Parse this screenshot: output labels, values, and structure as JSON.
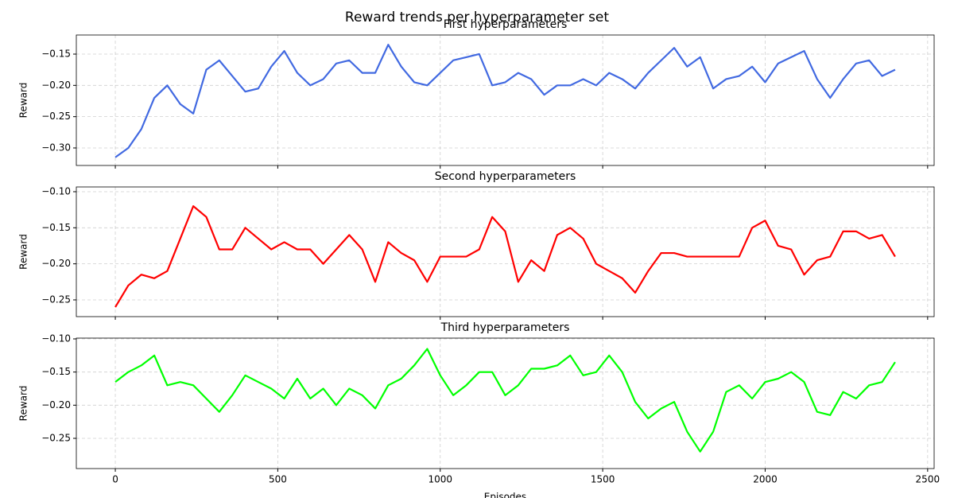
{
  "title": "Reward trends per hyperparameter set",
  "chart_data": [
    {
      "type": "line",
      "title": "First hyperparameters",
      "ylabel": "Reward",
      "grid": true,
      "xtick_labels": false,
      "x": [
        0,
        40,
        80,
        120,
        160,
        200,
        240,
        280,
        320,
        360,
        400,
        440,
        480,
        520,
        560,
        600,
        640,
        680,
        720,
        760,
        800,
        840,
        880,
        920,
        960,
        1000,
        1040,
        1080,
        1120,
        1160,
        1200,
        1240,
        1280,
        1320,
        1360,
        1400,
        1440,
        1480,
        1520,
        1560,
        1600,
        1640,
        1680,
        1720,
        1760,
        1800,
        1840,
        1880,
        1920,
        1960,
        2000,
        2040,
        2080,
        2120,
        2160,
        2200,
        2240,
        2280,
        2320,
        2360,
        2400
      ],
      "xlim": [
        -120,
        2520
      ],
      "xticks": [
        0,
        500,
        1000,
        1500,
        2000,
        2500
      ],
      "ylim": [
        -0.328,
        -0.1195
      ],
      "yticks": [
        {
          "value": -0.3,
          "label": "−0.30"
        },
        {
          "value": -0.25,
          "label": "−0.25"
        },
        {
          "value": -0.2,
          "label": "−0.20"
        },
        {
          "value": -0.15,
          "label": "−0.15"
        }
      ],
      "series": [
        {
          "name": "First",
          "color": "#4169e1",
          "values": [
            -0.315,
            -0.3,
            -0.27,
            -0.22,
            -0.2,
            -0.23,
            -0.245,
            -0.175,
            -0.16,
            -0.185,
            -0.21,
            -0.205,
            -0.17,
            -0.145,
            -0.18,
            -0.2,
            -0.19,
            -0.165,
            -0.16,
            -0.18,
            -0.18,
            -0.135,
            -0.17,
            -0.195,
            -0.2,
            -0.18,
            -0.16,
            -0.155,
            -0.15,
            -0.2,
            -0.195,
            -0.18,
            -0.19,
            -0.215,
            -0.2,
            -0.2,
            -0.19,
            -0.2,
            -0.18,
            -0.19,
            -0.205,
            -0.18,
            -0.16,
            -0.14,
            -0.17,
            -0.155,
            -0.205,
            -0.19,
            -0.185,
            -0.17,
            -0.195,
            -0.165,
            -0.155,
            -0.145,
            -0.19,
            -0.22,
            -0.19,
            -0.165,
            -0.16,
            -0.185,
            -0.175
          ]
        }
      ]
    },
    {
      "type": "line",
      "title": "Second hyperparameters",
      "ylabel": "Reward",
      "grid": true,
      "xtick_labels": false,
      "x": [
        0,
        40,
        80,
        120,
        160,
        200,
        240,
        280,
        320,
        360,
        400,
        440,
        480,
        520,
        560,
        600,
        640,
        680,
        720,
        760,
        800,
        840,
        880,
        920,
        960,
        1000,
        1040,
        1080,
        1120,
        1160,
        1200,
        1240,
        1280,
        1320,
        1360,
        1400,
        1440,
        1480,
        1520,
        1560,
        1600,
        1640,
        1680,
        1720,
        1760,
        1800,
        1840,
        1880,
        1920,
        1960,
        2000,
        2040,
        2080,
        2120,
        2160,
        2200,
        2240,
        2280,
        2320,
        2360,
        2400
      ],
      "xlim": [
        -120,
        2520
      ],
      "xticks": [
        0,
        500,
        1000,
        1500,
        2000,
        2500
      ],
      "ylim": [
        -0.2732,
        -0.0934
      ],
      "yticks": [
        {
          "value": -0.25,
          "label": "−0.25"
        },
        {
          "value": -0.2,
          "label": "−0.20"
        },
        {
          "value": -0.15,
          "label": "−0.15"
        },
        {
          "value": -0.1,
          "label": "−0.10"
        }
      ],
      "series": [
        {
          "name": "Second",
          "color": "#ff0000",
          "values": [
            -0.26,
            -0.23,
            -0.215,
            -0.22,
            -0.21,
            -0.165,
            -0.12,
            -0.135,
            -0.18,
            -0.18,
            -0.15,
            -0.165,
            -0.18,
            -0.17,
            -0.18,
            -0.18,
            -0.2,
            -0.18,
            -0.16,
            -0.18,
            -0.225,
            -0.17,
            -0.185,
            -0.195,
            -0.225,
            -0.19,
            -0.19,
            -0.19,
            -0.18,
            -0.135,
            -0.155,
            -0.225,
            -0.195,
            -0.21,
            -0.16,
            -0.15,
            -0.165,
            -0.2,
            -0.21,
            -0.22,
            -0.24,
            -0.21,
            -0.185,
            -0.185,
            -0.19,
            -0.19,
            -0.19,
            -0.19,
            -0.19,
            -0.15,
            -0.14,
            -0.175,
            -0.18,
            -0.215,
            -0.195,
            -0.19,
            -0.155,
            -0.155,
            -0.165,
            -0.16,
            -0.19
          ]
        }
      ]
    },
    {
      "type": "line",
      "title": "Third hyperparameters",
      "ylabel": "Reward",
      "xlabel": "Episodes",
      "grid": true,
      "xtick_labels": true,
      "x": [
        0,
        40,
        80,
        120,
        160,
        200,
        240,
        280,
        320,
        360,
        400,
        440,
        480,
        520,
        560,
        600,
        640,
        680,
        720,
        760,
        800,
        840,
        880,
        920,
        960,
        1000,
        1040,
        1080,
        1120,
        1160,
        1200,
        1240,
        1280,
        1320,
        1360,
        1400,
        1440,
        1480,
        1520,
        1560,
        1600,
        1640,
        1680,
        1720,
        1760,
        1800,
        1840,
        1880,
        1920,
        1960,
        2000,
        2040,
        2080,
        2120,
        2160,
        2200,
        2240,
        2280,
        2320,
        2360,
        2400
      ],
      "xlim": [
        -120,
        2520
      ],
      "xticks": [
        0,
        500,
        1000,
        1500,
        2000,
        2500
      ],
      "ylim": [
        -0.2956,
        -0.0988
      ],
      "yticks": [
        {
          "value": -0.25,
          "label": "−0.25"
        },
        {
          "value": -0.2,
          "label": "−0.20"
        },
        {
          "value": -0.15,
          "label": "−0.15"
        },
        {
          "value": -0.1,
          "label": "−0.10"
        }
      ],
      "series": [
        {
          "name": "Third",
          "color": "#00ff00",
          "values": [
            -0.165,
            -0.15,
            -0.14,
            -0.125,
            -0.17,
            -0.165,
            -0.17,
            -0.19,
            -0.21,
            -0.185,
            -0.155,
            -0.165,
            -0.175,
            -0.19,
            -0.16,
            -0.19,
            -0.175,
            -0.2,
            -0.175,
            -0.185,
            -0.205,
            -0.17,
            -0.16,
            -0.14,
            -0.115,
            -0.155,
            -0.185,
            -0.17,
            -0.15,
            -0.15,
            -0.185,
            -0.17,
            -0.145,
            -0.145,
            -0.14,
            -0.125,
            -0.155,
            -0.15,
            -0.125,
            -0.15,
            -0.195,
            -0.22,
            -0.205,
            -0.195,
            -0.24,
            -0.27,
            -0.24,
            -0.18,
            -0.17,
            -0.19,
            -0.165,
            -0.16,
            -0.15,
            -0.165,
            -0.21,
            -0.215,
            -0.18,
            -0.19,
            -0.17,
            -0.165,
            -0.135
          ]
        }
      ]
    }
  ]
}
